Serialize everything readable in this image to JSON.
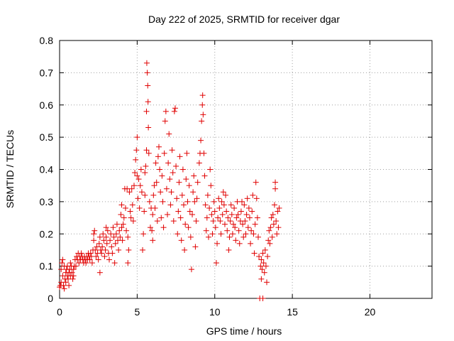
{
  "chart_data": {
    "type": "scatter",
    "title": "Day 222 of 2025, SRMTID for receiver dgar",
    "xlabel": "GPS time / hours",
    "ylabel": "SRMTID / TECUs",
    "xlim": [
      0,
      24
    ],
    "ylim": [
      0,
      0.8
    ],
    "xticks": [
      "0",
      "5",
      "10",
      "15",
      "20"
    ],
    "yticks": [
      "0",
      "0.1",
      "0.2",
      "0.3",
      "0.4",
      "0.5",
      "0.6",
      "0.7",
      "0.8"
    ],
    "grid": true,
    "marker": "+",
    "color": "#e00000",
    "series": [
      {
        "name": "SRMTID",
        "points": [
          [
            0.0,
            0.035
          ],
          [
            0.05,
            0.04
          ],
          [
            0.1,
            0.05
          ],
          [
            0.1,
            0.09
          ],
          [
            0.15,
            0.11
          ],
          [
            0.2,
            0.12
          ],
          [
            0.2,
            0.07
          ],
          [
            0.25,
            0.04
          ],
          [
            0.3,
            0.03
          ],
          [
            0.3,
            0.1
          ],
          [
            0.35,
            0.06
          ],
          [
            0.4,
            0.08
          ],
          [
            0.4,
            0.05
          ],
          [
            0.45,
            0.09
          ],
          [
            0.5,
            0.07
          ],
          [
            0.5,
            0.1
          ],
          [
            0.55,
            0.06
          ],
          [
            0.6,
            0.04
          ],
          [
            0.6,
            0.08
          ],
          [
            0.65,
            0.09
          ],
          [
            0.7,
            0.07
          ],
          [
            0.7,
            0.11
          ],
          [
            0.75,
            0.1
          ],
          [
            0.8,
            0.08
          ],
          [
            0.85,
            0.06
          ],
          [
            0.9,
            0.09
          ],
          [
            0.9,
            0.07
          ],
          [
            0.95,
            0.1
          ],
          [
            1.0,
            0.12
          ],
          [
            1.05,
            0.1
          ],
          [
            1.1,
            0.13
          ],
          [
            1.15,
            0.12
          ],
          [
            1.2,
            0.14
          ],
          [
            1.25,
            0.11
          ],
          [
            1.3,
            0.13
          ],
          [
            1.35,
            0.12
          ],
          [
            1.4,
            0.14
          ],
          [
            1.45,
            0.13
          ],
          [
            1.5,
            0.12
          ],
          [
            1.55,
            0.11
          ],
          [
            1.6,
            0.13
          ],
          [
            1.65,
            0.12
          ],
          [
            1.7,
            0.11
          ],
          [
            1.75,
            0.13
          ],
          [
            1.8,
            0.12
          ],
          [
            1.85,
            0.14
          ],
          [
            1.9,
            0.13
          ],
          [
            1.95,
            0.12
          ],
          [
            2.0,
            0.14
          ],
          [
            2.05,
            0.13
          ],
          [
            2.1,
            0.11
          ],
          [
            2.15,
            0.15
          ],
          [
            2.2,
            0.18
          ],
          [
            2.2,
            0.2
          ],
          [
            2.25,
            0.21
          ],
          [
            2.3,
            0.15
          ],
          [
            2.35,
            0.13
          ],
          [
            2.4,
            0.16
          ],
          [
            2.45,
            0.14
          ],
          [
            2.5,
            0.12
          ],
          [
            2.55,
            0.17
          ],
          [
            2.6,
            0.19
          ],
          [
            2.6,
            0.08
          ],
          [
            2.65,
            0.15
          ],
          [
            2.7,
            0.14
          ],
          [
            2.75,
            0.16
          ],
          [
            2.8,
            0.2
          ],
          [
            2.85,
            0.18
          ],
          [
            2.9,
            0.13
          ],
          [
            2.95,
            0.15
          ],
          [
            3.0,
            0.19
          ],
          [
            3.0,
            0.22
          ],
          [
            3.05,
            0.17
          ],
          [
            3.1,
            0.21
          ],
          [
            3.15,
            0.14
          ],
          [
            3.2,
            0.12
          ],
          [
            3.25,
            0.18
          ],
          [
            3.3,
            0.2
          ],
          [
            3.35,
            0.16
          ],
          [
            3.4,
            0.14
          ],
          [
            3.45,
            0.22
          ],
          [
            3.5,
            0.19
          ],
          [
            3.55,
            0.11
          ],
          [
            3.6,
            0.17
          ],
          [
            3.65,
            0.2
          ],
          [
            3.7,
            0.23
          ],
          [
            3.75,
            0.18
          ],
          [
            3.8,
            0.15
          ],
          [
            3.85,
            0.21
          ],
          [
            3.9,
            0.19
          ],
          [
            3.95,
            0.26
          ],
          [
            4.0,
            0.22
          ],
          [
            4.0,
            0.29
          ],
          [
            4.05,
            0.18
          ],
          [
            4.1,
            0.23
          ],
          [
            4.15,
            0.25
          ],
          [
            4.2,
            0.34
          ],
          [
            4.25,
            0.28
          ],
          [
            4.3,
            0.21
          ],
          [
            4.35,
            0.34
          ],
          [
            4.4,
            0.19
          ],
          [
            4.4,
            0.11
          ],
          [
            4.45,
            0.15
          ],
          [
            4.5,
            0.33
          ],
          [
            4.55,
            0.27
          ],
          [
            4.6,
            0.25
          ],
          [
            4.65,
            0.34
          ],
          [
            4.7,
            0.29
          ],
          [
            4.75,
            0.24
          ],
          [
            4.8,
            0.35
          ],
          [
            4.85,
            0.39
          ],
          [
            4.9,
            0.43
          ],
          [
            4.95,
            0.46
          ],
          [
            5.0,
            0.5
          ],
          [
            5.0,
            0.38
          ],
          [
            5.05,
            0.31
          ],
          [
            5.1,
            0.37
          ],
          [
            5.15,
            0.28
          ],
          [
            5.2,
            0.35
          ],
          [
            5.25,
            0.4
          ],
          [
            5.3,
            0.33
          ],
          [
            5.35,
            0.15
          ],
          [
            5.4,
            0.2
          ],
          [
            5.45,
            0.27
          ],
          [
            5.5,
            0.32
          ],
          [
            5.5,
            0.39
          ],
          [
            5.55,
            0.41
          ],
          [
            5.6,
            0.46
          ],
          [
            5.6,
            0.58
          ],
          [
            5.62,
            0.73
          ],
          [
            5.65,
            0.7
          ],
          [
            5.68,
            0.66
          ],
          [
            5.7,
            0.61
          ],
          [
            5.72,
            0.53
          ],
          [
            5.75,
            0.45
          ],
          [
            5.8,
            0.3
          ],
          [
            5.85,
            0.22
          ],
          [
            5.9,
            0.28
          ],
          [
            5.95,
            0.21
          ],
          [
            6.0,
            0.18
          ],
          [
            6.0,
            0.26
          ],
          [
            6.05,
            0.32
          ],
          [
            6.1,
            0.35
          ],
          [
            6.15,
            0.28
          ],
          [
            6.2,
            0.42
          ],
          [
            6.25,
            0.36
          ],
          [
            6.3,
            0.24
          ],
          [
            6.35,
            0.44
          ],
          [
            6.4,
            0.47
          ],
          [
            6.45,
            0.4
          ],
          [
            6.5,
            0.33
          ],
          [
            6.55,
            0.25
          ],
          [
            6.6,
            0.38
          ],
          [
            6.65,
            0.3
          ],
          [
            6.7,
            0.22
          ],
          [
            6.75,
            0.45
          ],
          [
            6.8,
            0.55
          ],
          [
            6.85,
            0.58
          ],
          [
            6.9,
            0.34
          ],
          [
            6.95,
            0.26
          ],
          [
            7.0,
            0.42
          ],
          [
            7.05,
            0.51
          ],
          [
            7.1,
            0.37
          ],
          [
            7.15,
            0.29
          ],
          [
            7.2,
            0.33
          ],
          [
            7.25,
            0.46
          ],
          [
            7.3,
            0.39
          ],
          [
            7.35,
            0.24
          ],
          [
            7.4,
            0.58
          ],
          [
            7.45,
            0.59
          ],
          [
            7.5,
            0.41
          ],
          [
            7.55,
            0.31
          ],
          [
            7.6,
            0.2
          ],
          [
            7.65,
            0.27
          ],
          [
            7.7,
            0.36
          ],
          [
            7.75,
            0.44
          ],
          [
            7.8,
            0.25
          ],
          [
            7.85,
            0.18
          ],
          [
            7.9,
            0.32
          ],
          [
            7.95,
            0.4
          ],
          [
            8.0,
            0.29
          ],
          [
            8.05,
            0.15
          ],
          [
            8.1,
            0.23
          ],
          [
            8.15,
            0.37
          ],
          [
            8.2,
            0.45
          ],
          [
            8.25,
            0.3
          ],
          [
            8.3,
            0.22
          ],
          [
            8.35,
            0.35
          ],
          [
            8.4,
            0.27
          ],
          [
            8.45,
            0.19
          ],
          [
            8.5,
            0.09
          ],
          [
            8.55,
            0.26
          ],
          [
            8.6,
            0.33
          ],
          [
            8.65,
            0.38
          ],
          [
            8.7,
            0.3
          ],
          [
            8.75,
            0.16
          ],
          [
            8.8,
            0.24
          ],
          [
            8.85,
            0.31
          ],
          [
            8.9,
            0.36
          ],
          [
            9.0,
            0.42
          ],
          [
            9.05,
            0.45
          ],
          [
            9.1,
            0.49
          ],
          [
            9.15,
            0.55
          ],
          [
            9.2,
            0.6
          ],
          [
            9.22,
            0.63
          ],
          [
            9.25,
            0.57
          ],
          [
            9.3,
            0.45
          ],
          [
            9.35,
            0.38
          ],
          [
            9.4,
            0.29
          ],
          [
            9.45,
            0.21
          ],
          [
            9.5,
            0.25
          ],
          [
            9.55,
            0.32
          ],
          [
            9.6,
            0.19
          ],
          [
            9.65,
            0.28
          ],
          [
            9.7,
            0.4
          ],
          [
            9.75,
            0.35
          ],
          [
            9.8,
            0.26
          ],
          [
            9.85,
            0.2
          ],
          [
            9.9,
            0.24
          ],
          [
            9.95,
            0.3
          ],
          [
            10.0,
            0.27
          ],
          [
            10.05,
            0.22
          ],
          [
            10.1,
            0.11
          ],
          [
            10.15,
            0.17
          ],
          [
            10.2,
            0.25
          ],
          [
            10.25,
            0.31
          ],
          [
            10.3,
            0.28
          ],
          [
            10.35,
            0.24
          ],
          [
            10.4,
            0.2
          ],
          [
            10.45,
            0.3
          ],
          [
            10.5,
            0.26
          ],
          [
            10.55,
            0.33
          ],
          [
            10.6,
            0.29
          ],
          [
            10.65,
            0.23
          ],
          [
            10.7,
            0.32
          ],
          [
            10.75,
            0.27
          ],
          [
            10.8,
            0.21
          ],
          [
            10.85,
            0.25
          ],
          [
            10.9,
            0.15
          ],
          [
            10.95,
            0.19
          ],
          [
            11.0,
            0.24
          ],
          [
            11.05,
            0.29
          ],
          [
            11.1,
            0.26
          ],
          [
            11.15,
            0.2
          ],
          [
            11.2,
            0.23
          ],
          [
            11.25,
            0.28
          ],
          [
            11.3,
            0.22
          ],
          [
            11.35,
            0.18
          ],
          [
            11.4,
            0.25
          ],
          [
            11.45,
            0.3
          ],
          [
            11.5,
            0.26
          ],
          [
            11.55,
            0.21
          ],
          [
            11.6,
            0.17
          ],
          [
            11.65,
            0.24
          ],
          [
            11.7,
            0.27
          ],
          [
            11.75,
            0.3
          ],
          [
            11.8,
            0.23
          ],
          [
            11.85,
            0.19
          ],
          [
            11.9,
            0.29
          ],
          [
            11.95,
            0.24
          ],
          [
            12.0,
            0.2
          ],
          [
            12.05,
            0.26
          ],
          [
            12.1,
            0.31
          ],
          [
            12.15,
            0.22
          ],
          [
            12.2,
            0.28
          ],
          [
            12.25,
            0.25
          ],
          [
            12.3,
            0.17
          ],
          [
            12.35,
            0.21
          ],
          [
            12.4,
            0.27
          ],
          [
            12.45,
            0.32
          ],
          [
            12.5,
            0.2
          ],
          [
            12.55,
            0.14
          ],
          [
            12.6,
            0.23
          ],
          [
            12.65,
            0.36
          ],
          [
            12.7,
            0.31
          ],
          [
            12.75,
            0.25
          ],
          [
            12.8,
            0.19
          ],
          [
            12.85,
            0.13
          ],
          [
            12.9,
            0.0
          ],
          [
            12.95,
            0.1
          ],
          [
            13.0,
            0.12
          ],
          [
            13.0,
            0.06
          ],
          [
            13.05,
            0.09
          ],
          [
            13.1,
            0.14
          ],
          [
            13.1,
            0.0
          ],
          [
            13.15,
            0.11
          ],
          [
            13.2,
            0.08
          ],
          [
            13.25,
            0.15
          ],
          [
            13.3,
            0.1
          ],
          [
            13.35,
            0.05
          ],
          [
            13.4,
            0.13
          ],
          [
            13.45,
            0.18
          ],
          [
            13.5,
            0.21
          ],
          [
            13.55,
            0.17
          ],
          [
            13.6,
            0.22
          ],
          [
            13.65,
            0.25
          ],
          [
            13.7,
            0.19
          ],
          [
            13.75,
            0.26
          ],
          [
            13.8,
            0.23
          ],
          [
            13.85,
            0.29
          ],
          [
            13.9,
            0.34
          ],
          [
            13.9,
            0.36
          ],
          [
            13.95,
            0.24
          ],
          [
            14.0,
            0.2
          ],
          [
            14.05,
            0.27
          ],
          [
            14.1,
            0.22
          ],
          [
            14.15,
            0.28
          ]
        ]
      }
    ]
  }
}
